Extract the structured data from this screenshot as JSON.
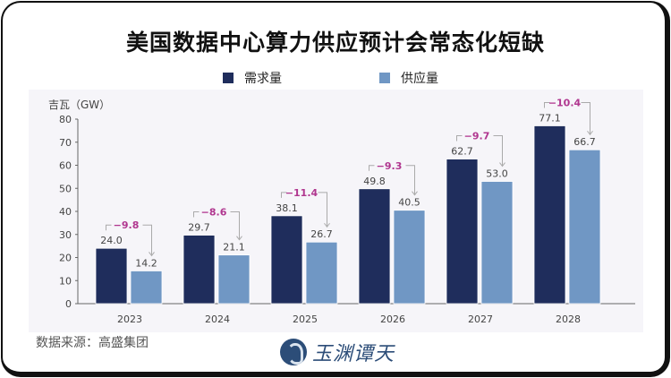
{
  "title": "美国数据中心算力供应预计会常态化短缺",
  "source": "数据来源：高盛集团",
  "logo_text": "玉渊谭天",
  "chart_data": {
    "type": "bar",
    "title": "美国数据中心算力供应预计会常态化短缺",
    "ylabel": "吉瓦（GW）",
    "xlabel": "",
    "ylim": [
      0,
      80
    ],
    "yticks": [
      0,
      10,
      20,
      30,
      40,
      50,
      60,
      70,
      80
    ],
    "grid": false,
    "legend_position": "top-center",
    "categories": [
      "2023",
      "2024",
      "2025",
      "2026",
      "2027",
      "2028"
    ],
    "series": [
      {
        "name": "需求量",
        "color": "#1f2d5c",
        "values": [
          24.0,
          29.7,
          38.1,
          49.8,
          62.7,
          77.1
        ],
        "labels": [
          "24.0",
          "29.7",
          "38.1",
          "49.8",
          "62.7",
          "77.1"
        ]
      },
      {
        "name": "供应量",
        "color": "#7097c4",
        "values": [
          14.2,
          21.1,
          26.7,
          40.5,
          53.0,
          66.7
        ],
        "labels": [
          "14.2",
          "21.1",
          "26.7",
          "40.5",
          "53.0",
          "66.7"
        ]
      }
    ],
    "gap_annotations": [
      "−9.8",
      "−8.6",
      "−11.4",
      "−9.3",
      "−9.7",
      "−10.4"
    ],
    "annotation_color": "#b0368f"
  }
}
